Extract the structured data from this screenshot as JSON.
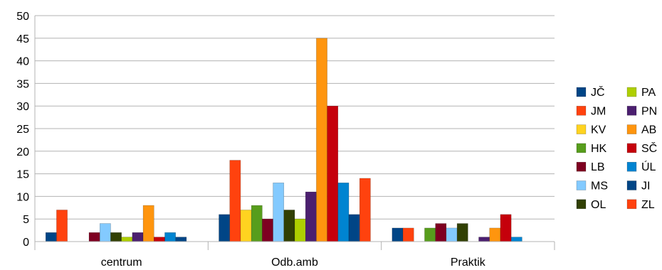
{
  "chart_data": {
    "type": "bar",
    "title": "",
    "xlabel": "",
    "ylabel": "",
    "ylim": [
      0,
      50
    ],
    "yticks": [
      0,
      5,
      10,
      15,
      20,
      25,
      30,
      35,
      40,
      45,
      50
    ],
    "grid": true,
    "legend_position": "right",
    "categories": [
      "centrum",
      "Odb.amb",
      "Praktik"
    ],
    "series": [
      {
        "name": "JČ",
        "color": "#004586",
        "values": [
          2,
          6,
          3
        ]
      },
      {
        "name": "JM",
        "color": "#ff420e",
        "values": [
          7,
          18,
          3
        ]
      },
      {
        "name": "KV",
        "color": "#ffd320",
        "values": [
          0,
          7,
          0
        ]
      },
      {
        "name": "HK",
        "color": "#579d1c",
        "values": [
          0,
          8,
          3
        ]
      },
      {
        "name": "LB",
        "color": "#7e0021",
        "values": [
          2,
          5,
          4
        ]
      },
      {
        "name": "MS",
        "color": "#83caff",
        "values": [
          4,
          13,
          3
        ]
      },
      {
        "name": "OL",
        "color": "#314004",
        "values": [
          2,
          7,
          4
        ]
      },
      {
        "name": "PA",
        "color": "#aecf00",
        "values": [
          1,
          5,
          0
        ]
      },
      {
        "name": "PN",
        "color": "#4b1f6f",
        "values": [
          2,
          11,
          1
        ]
      },
      {
        "name": "AB",
        "color": "#ff950e",
        "values": [
          8,
          45,
          3
        ]
      },
      {
        "name": "SČ",
        "color": "#c5000b",
        "values": [
          1,
          30,
          6
        ]
      },
      {
        "name": "ÚL",
        "color": "#0084d1",
        "values": [
          2,
          13,
          1
        ]
      },
      {
        "name": "JI",
        "color": "#004586",
        "values": [
          1,
          6,
          0
        ]
      },
      {
        "name": "ZL",
        "color": "#ff420e",
        "values": [
          0,
          14,
          0
        ]
      }
    ]
  }
}
